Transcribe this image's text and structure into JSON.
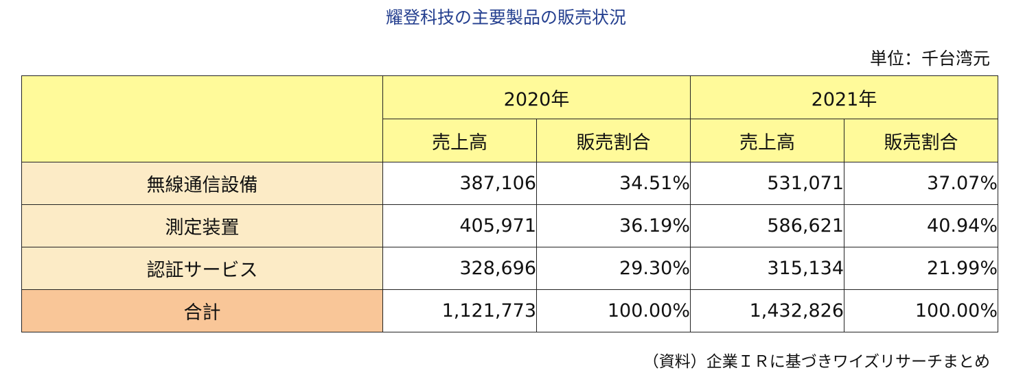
{
  "title": "耀登科技の主要製品の販売状況",
  "unit": "単位：千台湾元",
  "source": "（資料）企業ＩＲに基づきワイズリサーチまとめ",
  "colors": {
    "title": "#243f8f",
    "header_yellow": "#fffa9a",
    "label_beige": "#fcebc6",
    "total_orange": "#f9c698"
  },
  "chart_data": {
    "type": "table",
    "title": "耀登科技の主要製品の販売状況",
    "unit": "単位：千台湾元",
    "years": [
      "2020年",
      "2021年"
    ],
    "subheaders": [
      "売上高",
      "販売割合",
      "売上高",
      "販売割合"
    ],
    "rows": [
      {
        "label": "無線通信設備",
        "values": [
          "387,106",
          "34.51%",
          "531,071",
          "37.07%"
        ]
      },
      {
        "label": "測定装置",
        "values": [
          "405,971",
          "36.19%",
          "586,621",
          "40.94%"
        ]
      },
      {
        "label": "認証サービス",
        "values": [
          "328,696",
          "29.30%",
          "315,134",
          "21.99%"
        ]
      }
    ],
    "total": {
      "label": "合計",
      "values": [
        "1,121,773",
        "100.00%",
        "1,432,826",
        "100.00%"
      ]
    }
  }
}
